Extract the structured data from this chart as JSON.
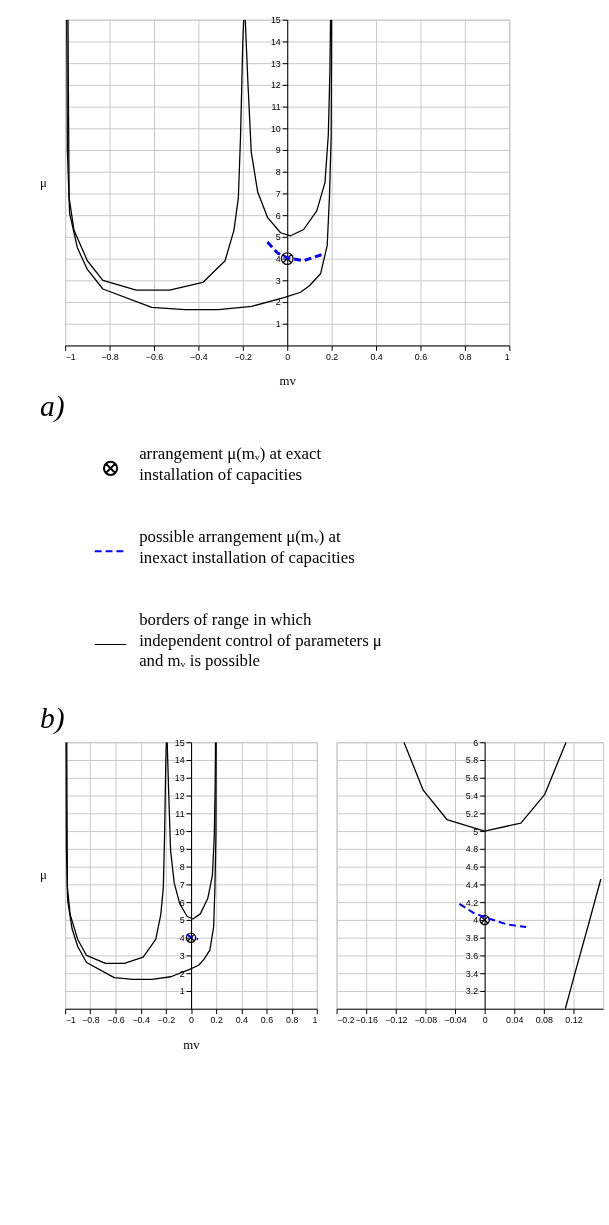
{
  "chart_data": [
    {
      "type": "line",
      "title": "a)",
      "xlabel": "mv",
      "ylabel": "μ",
      "xlim": [
        -1,
        1
      ],
      "ylim": [
        0,
        15
      ],
      "xticks": [
        -1,
        -0.8,
        -0.6,
        -0.4,
        -0.2,
        0,
        0.2,
        0.4,
        0.6,
        0.8,
        1
      ],
      "yticks": [
        1,
        2,
        3,
        4,
        5,
        6,
        7,
        8,
        9,
        10,
        11,
        12,
        13,
        14,
        15
      ],
      "grid": true,
      "legend": "bottom",
      "series": [
        {
          "type": "scatter",
          "name": "arrangement μ(mᵥ) at exact installation of capacities",
          "color": "#000000",
          "marker": "cross",
          "x": [
            0
          ],
          "values": [
            4
          ]
        },
        {
          "name": "possible arrangement μ(mᵥ) at inexact installation of capacities",
          "color": "#0000ff",
          "line_style": "dashed",
          "x": [
            -0.089,
            -0.044,
            0,
            0.074,
            0.155
          ],
          "values": [
            4.76,
            4.26,
            4.04,
            3.9,
            4.18
          ]
        },
        {
          "name": "borders of range in which independent control of parameters μ and mᵥ is possible",
          "color": "#000000",
          "line_style": "solid",
          "x": [
            -0.993,
            -0.99,
            -0.98,
            -0.945,
            -0.9,
            -0.83,
            -0.61,
            -0.46,
            -0.31,
            -0.16,
            -0.015,
            0.06,
            0.1,
            0.15,
            0.18,
            0.19,
            0.198,
            0.2
          ],
          "values": [
            15,
            9,
            6.1,
            4.5,
            3.5,
            2.6,
            1.75,
            1.65,
            1.65,
            1.8,
            2.2,
            2.45,
            2.75,
            3.3,
            4.6,
            6.8,
            9.7,
            15
          ]
        },
        {
          "type": "line",
          "color": "#000000",
          "line_style": "solid",
          "x": [
            -0.987,
            -0.985,
            -0.982,
            -0.96,
            -0.9,
            -0.83,
            -0.68,
            -0.53,
            -0.38,
            -0.28,
            -0.24,
            -0.22,
            -0.21,
            -0.2,
            -0.196
          ],
          "values": [
            15,
            11,
            6.8,
            5.3,
            3.9,
            3.0,
            2.55,
            2.55,
            2.9,
            3.9,
            5.3,
            6.8,
            9.7,
            14,
            15
          ]
        },
        {
          "type": "line",
          "color": "#000000",
          "line_style": "solid",
          "x": [
            -0.189,
            -0.177,
            -0.162,
            -0.133,
            -0.089,
            -0.03,
            0.015,
            0.074,
            0.133,
            0.17,
            0.185,
            0.192,
            0.195
          ],
          "values": [
            15,
            12.1,
            8.9,
            7.07,
            5.9,
            5.19,
            5.05,
            5.34,
            6.2,
            7.5,
            9.7,
            12.55,
            15
          ]
        }
      ]
    },
    {
      "type": "line",
      "title": "b)",
      "xlabel": "mv",
      "ylabel": "μ",
      "xlim": [
        -1,
        1
      ],
      "ylim": [
        0,
        15
      ],
      "xticks": [
        -1,
        -0.8,
        -0.6,
        -0.4,
        -0.2,
        0,
        0.2,
        0.4,
        0.6,
        0.8,
        1
      ],
      "yticks": [
        1,
        2,
        3,
        4,
        5,
        6,
        7,
        8,
        9,
        10,
        11,
        12,
        13,
        14,
        15
      ],
      "grid": true,
      "series": [
        {
          "type": "scatter",
          "color": "#000000",
          "marker": "cross",
          "x": [
            0
          ],
          "values": [
            4
          ]
        },
        {
          "type": "line",
          "color": "#0000ff",
          "line_style": "dashed",
          "x": [
            -0.034,
            0,
            0.056
          ],
          "values": [
            4.18,
            4.03,
            3.92
          ]
        },
        {
          "type": "line",
          "color": "#000000",
          "line_style": "solid",
          "x": [
            -0.993,
            -0.99,
            -0.98,
            -0.945,
            -0.9,
            -0.83,
            -0.61,
            -0.46,
            -0.31,
            -0.16,
            -0.015,
            0.06,
            0.1,
            0.15,
            0.18,
            0.19,
            0.198,
            0.2
          ],
          "values": [
            15,
            9,
            6.1,
            4.5,
            3.5,
            2.6,
            1.75,
            1.65,
            1.65,
            1.8,
            2.2,
            2.45,
            2.75,
            3.3,
            4.6,
            6.8,
            9.7,
            15
          ]
        },
        {
          "type": "line",
          "color": "#000000",
          "line_style": "solid",
          "x": [
            -0.987,
            -0.985,
            -0.982,
            -0.96,
            -0.9,
            -0.83,
            -0.68,
            -0.53,
            -0.38,
            -0.28,
            -0.24,
            -0.22,
            -0.21,
            -0.2,
            -0.196
          ],
          "values": [
            15,
            11,
            6.8,
            5.3,
            3.9,
            3.0,
            2.55,
            2.55,
            2.9,
            3.9,
            5.3,
            6.8,
            9.7,
            14,
            15
          ]
        },
        {
          "type": "line",
          "color": "#000000",
          "line_style": "solid",
          "x": [
            -0.189,
            -0.177,
            -0.162,
            -0.133,
            -0.089,
            -0.03,
            0.015,
            0.074,
            0.133,
            0.17,
            0.185,
            0.192,
            0.195
          ],
          "values": [
            15,
            12.1,
            8.9,
            7.07,
            5.9,
            5.19,
            5.05,
            5.34,
            6.2,
            7.5,
            9.7,
            12.55,
            15
          ]
        }
      ]
    },
    {
      "type": "line",
      "xlim": [
        -0.2,
        0.16
      ],
      "ylim": [
        3,
        6
      ],
      "xticks": [
        -0.2,
        -0.16,
        -0.12,
        -0.08,
        -0.04,
        0,
        0.04,
        0.08,
        0.12
      ],
      "yticks": [
        3.2,
        3.4,
        3.6,
        3.8,
        4,
        4.2,
        4.4,
        4.6,
        4.8,
        5,
        5.2,
        5.4,
        5.6,
        5.8,
        6
      ],
      "grid": true,
      "series": [
        {
          "type": "scatter",
          "color": "#000000",
          "marker": "cross",
          "x": [
            0
          ],
          "values": [
            4
          ]
        },
        {
          "type": "line",
          "color": "#0000ff",
          "line_style": "dashed",
          "x": [
            -0.034,
            -0.015,
            0,
            0.03,
            0.056
          ],
          "values": [
            4.18,
            4.08,
            4.03,
            3.95,
            3.92
          ]
        },
        {
          "type": "line",
          "color": "#000000",
          "line_style": "solid",
          "x": [
            -0.109,
            -0.083,
            -0.051,
            0,
            0.049,
            0.081,
            0.11
          ],
          "values": [
            6,
            5.46,
            5.13,
            5,
            5.09,
            5.41,
            6
          ]
        },
        {
          "type": "line",
          "color": "#000000",
          "line_style": "solid",
          "x": [
            0.109,
            0.121,
            0.14,
            0.157
          ],
          "values": [
            3,
            3.37,
            3.94,
            4.46
          ]
        }
      ]
    }
  ]
}
